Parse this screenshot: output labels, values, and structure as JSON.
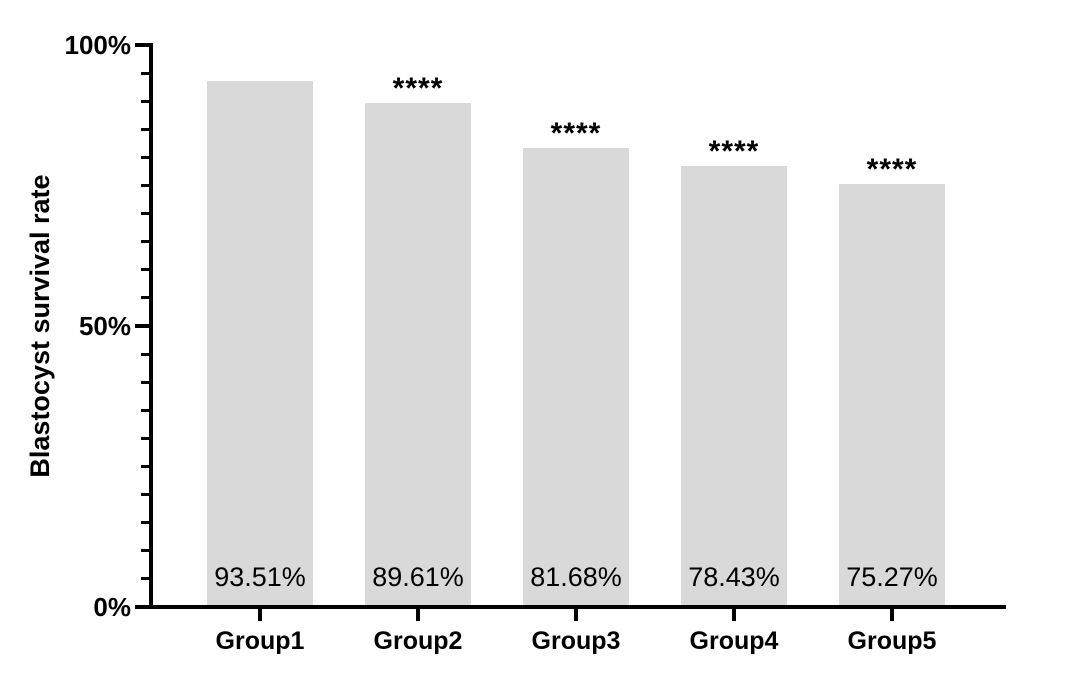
{
  "chart_data": {
    "type": "bar",
    "title": "",
    "ylabel": "Blastocyst survival rate",
    "xlabel": "",
    "categories": [
      "Group1",
      "Group2",
      "Group3",
      "Group4",
      "Group5"
    ],
    "values": [
      93.51,
      89.61,
      81.68,
      78.43,
      75.27
    ],
    "value_labels": [
      "93.51%",
      "89.61%",
      "81.68%",
      "78.43%",
      "75.27%"
    ],
    "significance": [
      "",
      "****",
      "****",
      "****",
      "****"
    ],
    "ylim": [
      0,
      100
    ],
    "y_major_ticks": [
      {
        "value": 0,
        "label": "0%"
      },
      {
        "value": 50,
        "label": "50%"
      },
      {
        "value": 100,
        "label": "100%"
      }
    ],
    "y_minor_tick_step": 5,
    "grid": false,
    "legend": false,
    "bar_color": "#d9d9d9",
    "axis_color": "#000000",
    "text_color": "#000000"
  }
}
